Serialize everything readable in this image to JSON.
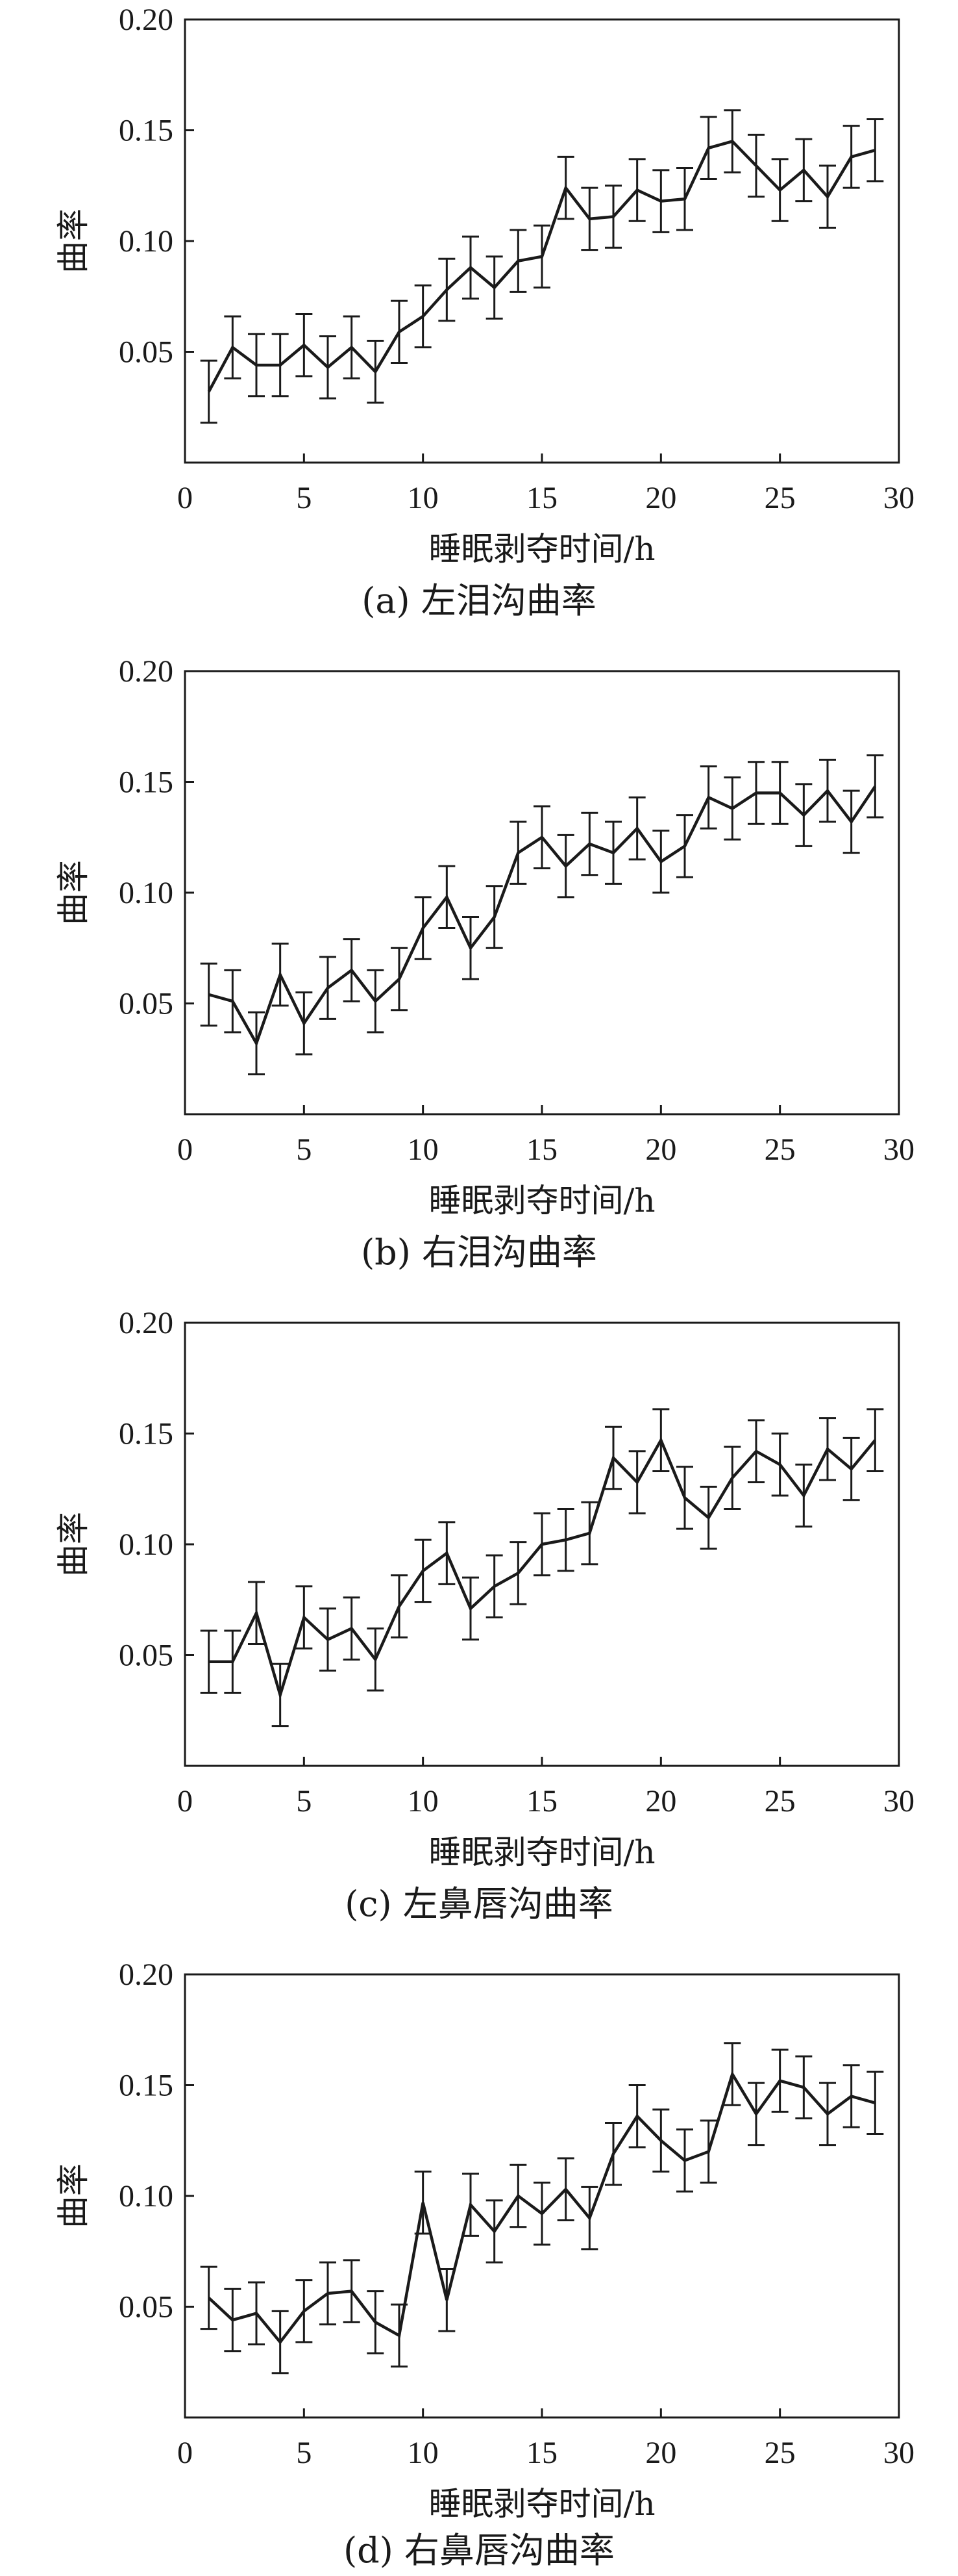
{
  "chart_data": [
    {
      "type": "line",
      "caption": "(a) 左泪沟曲率",
      "xlabel": "睡眠剥夺时间/h",
      "ylabel": "曲率",
      "xlim": [
        0,
        30
      ],
      "ylim": [
        0,
        0.2
      ],
      "xticks": [
        "0",
        "5",
        "10",
        "15",
        "20",
        "25",
        "30"
      ],
      "yticks": [
        "0.05",
        "0.10",
        "0.15",
        "0.20"
      ],
      "x": [
        1,
        2,
        3,
        4,
        5,
        6,
        7,
        8,
        9,
        10,
        11,
        12,
        13,
        14,
        15,
        16,
        17,
        18,
        19,
        20,
        21,
        22,
        23,
        24,
        25,
        26,
        27,
        28,
        29
      ],
      "values": [
        0.032,
        0.052,
        0.044,
        0.044,
        0.053,
        0.043,
        0.052,
        0.041,
        0.059,
        0.066,
        0.078,
        0.088,
        0.079,
        0.091,
        0.093,
        0.124,
        0.11,
        0.111,
        0.123,
        0.118,
        0.119,
        0.142,
        0.145,
        0.134,
        0.123,
        0.132,
        0.12,
        0.138,
        0.141
      ],
      "errors": [
        0.014,
        0.014,
        0.014,
        0.014,
        0.014,
        0.014,
        0.014,
        0.014,
        0.014,
        0.014,
        0.014,
        0.014,
        0.014,
        0.014,
        0.014,
        0.014,
        0.014,
        0.014,
        0.014,
        0.014,
        0.014,
        0.014,
        0.014,
        0.014,
        0.014,
        0.014,
        0.014,
        0.014,
        0.014
      ]
    },
    {
      "type": "line",
      "caption": "(b) 右泪沟曲率",
      "xlabel": "睡眠剥夺时间/h",
      "ylabel": "曲率",
      "xlim": [
        0,
        30
      ],
      "ylim": [
        0,
        0.2
      ],
      "xticks": [
        "0",
        "5",
        "10",
        "15",
        "20",
        "25",
        "30"
      ],
      "yticks": [
        "0.05",
        "0.10",
        "0.15",
        "0.20"
      ],
      "x": [
        1,
        2,
        3,
        4,
        5,
        6,
        7,
        8,
        9,
        10,
        11,
        12,
        13,
        14,
        15,
        16,
        17,
        18,
        19,
        20,
        21,
        22,
        23,
        24,
        25,
        26,
        27,
        28,
        29
      ],
      "values": [
        0.054,
        0.051,
        0.032,
        0.063,
        0.041,
        0.057,
        0.065,
        0.051,
        0.061,
        0.084,
        0.098,
        0.075,
        0.089,
        0.118,
        0.125,
        0.112,
        0.122,
        0.118,
        0.129,
        0.114,
        0.121,
        0.143,
        0.138,
        0.145,
        0.145,
        0.135,
        0.146,
        0.132,
        0.148
      ],
      "errors": [
        0.014,
        0.014,
        0.014,
        0.014,
        0.014,
        0.014,
        0.014,
        0.014,
        0.014,
        0.014,
        0.014,
        0.014,
        0.014,
        0.014,
        0.014,
        0.014,
        0.014,
        0.014,
        0.014,
        0.014,
        0.014,
        0.014,
        0.014,
        0.014,
        0.014,
        0.014,
        0.014,
        0.014,
        0.014
      ]
    },
    {
      "type": "line",
      "caption": "(c) 左鼻唇沟曲率",
      "xlabel": "睡眠剥夺时间/h",
      "ylabel": "曲率",
      "xlim": [
        0,
        30
      ],
      "ylim": [
        0,
        0.2
      ],
      "xticks": [
        "0",
        "5",
        "10",
        "15",
        "20",
        "25",
        "30"
      ],
      "yticks": [
        "0.05",
        "0.10",
        "0.15",
        "0.20"
      ],
      "x": [
        1,
        2,
        3,
        4,
        5,
        6,
        7,
        8,
        9,
        10,
        11,
        12,
        13,
        14,
        15,
        16,
        17,
        18,
        19,
        20,
        21,
        22,
        23,
        24,
        25,
        26,
        27,
        28,
        29
      ],
      "values": [
        0.047,
        0.047,
        0.069,
        0.032,
        0.067,
        0.057,
        0.062,
        0.048,
        0.072,
        0.088,
        0.096,
        0.071,
        0.081,
        0.087,
        0.1,
        0.102,
        0.105,
        0.139,
        0.128,
        0.147,
        0.121,
        0.112,
        0.13,
        0.142,
        0.136,
        0.122,
        0.143,
        0.134,
        0.147
      ],
      "errors": [
        0.014,
        0.014,
        0.014,
        0.014,
        0.014,
        0.014,
        0.014,
        0.014,
        0.014,
        0.014,
        0.014,
        0.014,
        0.014,
        0.014,
        0.014,
        0.014,
        0.014,
        0.014,
        0.014,
        0.014,
        0.014,
        0.014,
        0.014,
        0.014,
        0.014,
        0.014,
        0.014,
        0.014,
        0.014
      ]
    },
    {
      "type": "line",
      "caption": "(d) 右鼻唇沟曲率",
      "xlabel": "睡眠剥夺时间/h",
      "ylabel": "曲率",
      "xlim": [
        0,
        30
      ],
      "ylim": [
        0,
        0.2
      ],
      "xticks": [
        "0",
        "5",
        "10",
        "15",
        "20",
        "25",
        "30"
      ],
      "yticks": [
        "0.05",
        "0.10",
        "0.15",
        "0.20"
      ],
      "x": [
        1,
        2,
        3,
        4,
        5,
        6,
        7,
        8,
        9,
        10,
        11,
        12,
        13,
        14,
        15,
        16,
        17,
        18,
        19,
        20,
        21,
        22,
        23,
        24,
        25,
        26,
        27,
        28,
        29
      ],
      "values": [
        0.054,
        0.044,
        0.047,
        0.034,
        0.048,
        0.056,
        0.057,
        0.043,
        0.037,
        0.097,
        0.053,
        0.096,
        0.084,
        0.1,
        0.092,
        0.103,
        0.09,
        0.119,
        0.136,
        0.125,
        0.116,
        0.12,
        0.155,
        0.137,
        0.152,
        0.149,
        0.137,
        0.145,
        0.142
      ],
      "errors": [
        0.014,
        0.014,
        0.014,
        0.014,
        0.014,
        0.014,
        0.014,
        0.014,
        0.014,
        0.014,
        0.014,
        0.014,
        0.014,
        0.014,
        0.014,
        0.014,
        0.014,
        0.014,
        0.014,
        0.014,
        0.014,
        0.014,
        0.014,
        0.014,
        0.014,
        0.014,
        0.014,
        0.014,
        0.014
      ]
    }
  ]
}
